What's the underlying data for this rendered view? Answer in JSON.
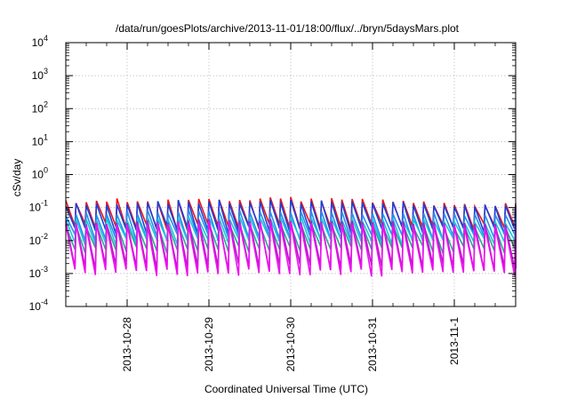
{
  "chart_data": {
    "type": "line",
    "title": "/data/run/goesPlots/archive/2013-11-01/18:00/flux/../bryn/5daysMars.plot",
    "xlabel": "Coordinated Universal Time (UTC)",
    "ylabel": "cSv/day",
    "y_scale": "log",
    "ylim": [
      0.0001,
      10000
    ],
    "xlim": [
      "2013-10-27T06:00",
      "2013-11-01T18:00"
    ],
    "y_ticks": [
      {
        "base": "10",
        "exp": "-4"
      },
      {
        "base": "10",
        "exp": "-3"
      },
      {
        "base": "10",
        "exp": "-2"
      },
      {
        "base": "10",
        "exp": "-1"
      },
      {
        "base": "10",
        "exp": "0"
      },
      {
        "base": "10",
        "exp": "1"
      },
      {
        "base": "10",
        "exp": "2"
      },
      {
        "base": "10",
        "exp": "3"
      },
      {
        "base": "10",
        "exp": "4"
      }
    ],
    "x_ticks": [
      "2013-10-28",
      "2013-10-29",
      "2013-10-30",
      "2013-10-31",
      "2013-11-1"
    ],
    "x_tick_values": [
      "2013-10-28T00:00",
      "2013-10-29T00:00",
      "2013-10-30T00:00",
      "2013-10-31T00:00",
      "2013-11-01T00:00"
    ],
    "grid": true,
    "legend": "none",
    "sawtooth_period_hours": 3,
    "series": [
      {
        "color": "#e8161b",
        "peak_range": [
          0.09,
          0.22
        ],
        "trough_range": [
          0.02,
          0.035
        ]
      },
      {
        "color": "#1f3fd8",
        "peak_range": [
          0.08,
          0.18
        ],
        "trough_range": [
          0.015,
          0.028
        ]
      },
      {
        "color": "#2a8cf0",
        "peak_range": [
          0.045,
          0.09
        ],
        "trough_range": [
          0.009,
          0.016
        ]
      },
      {
        "color": "#16c7d8",
        "peak_range": [
          0.03,
          0.055
        ],
        "trough_range": [
          0.007,
          0.012
        ]
      },
      {
        "color": "#2aa890",
        "peak_range": [
          0.02,
          0.035
        ],
        "trough_range": [
          0.004,
          0.007
        ]
      },
      {
        "color": "#b01ac8",
        "peak_range": [
          0.025,
          0.045
        ],
        "trough_range": [
          0.0012,
          0.002
        ]
      },
      {
        "color": "#ee10ee",
        "peak_range": [
          0.02,
          0.04
        ],
        "trough_range": [
          0.0008,
          0.0014
        ]
      }
    ]
  }
}
